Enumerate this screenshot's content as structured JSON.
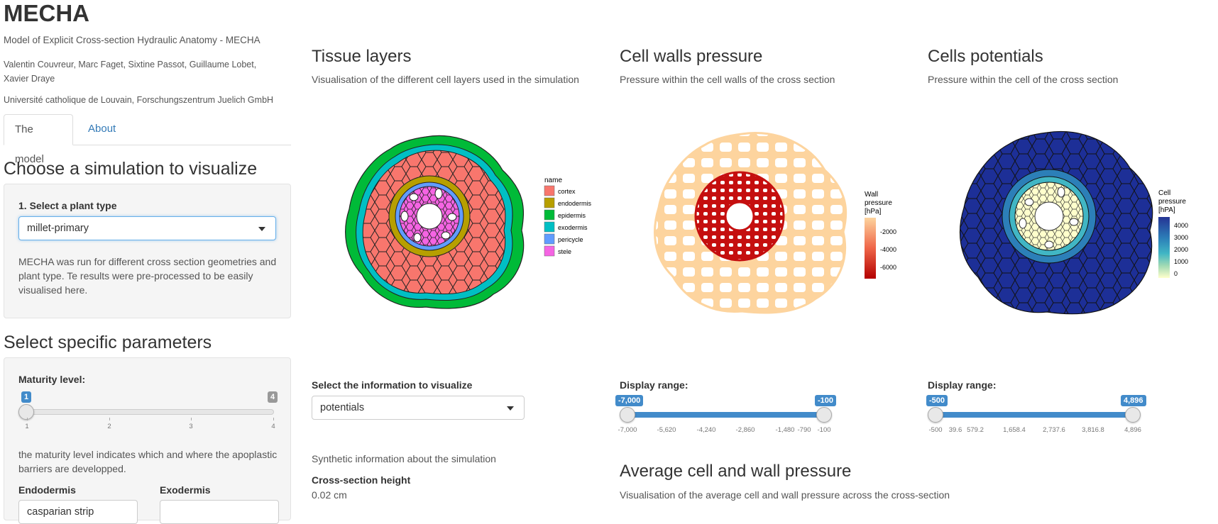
{
  "app": {
    "title": "MECHA",
    "subtitle": "Model of Explicit Cross-section Hydraulic Anatomy - MECHA",
    "authors": "Valentin Couvreur, Marc Faget, Sixtine Passot, Guillaume Lobet, Xavier Draye",
    "affiliation": "Université catholique de Louvain, Forschungszentrum Juelich GmbH"
  },
  "tabs": [
    {
      "label": "The model",
      "active": true
    },
    {
      "label": "About",
      "active": false
    }
  ],
  "sidebar": {
    "choose_heading": "Choose a simulation to visualize",
    "plant_type_label": "1. Select a plant type",
    "plant_type_value": "millet-primary",
    "plant_info": "MECHA was run for different cross section geometries and plant type. Te results were pre-processed to be easily visualised here.",
    "params_heading": "Select specific parameters",
    "maturity_label": "Maturity level:",
    "maturity": {
      "min": 1,
      "max": 4,
      "value": 1,
      "ticks": [
        "1",
        "2",
        "3",
        "4"
      ]
    },
    "maturity_info": "the maturity level indicates which and where the apoplastic barriers are developped.",
    "endodermis_label": "Endodermis",
    "endodermis_value": "casparian strip",
    "exodermis_label": "Exodermis",
    "exodermis_value": ""
  },
  "tissue_plot": {
    "title": "Tissue layers",
    "subtitle": "Visualisation of the different cell layers used in the simulation",
    "legend_title": "name",
    "legend": [
      {
        "label": "cortex",
        "color": "#f8766d"
      },
      {
        "label": "endodermis",
        "color": "#b79f00"
      },
      {
        "label": "epidermis",
        "color": "#00ba38"
      },
      {
        "label": "exodermis",
        "color": "#00bfc4"
      },
      {
        "label": "pericycle",
        "color": "#619cff"
      },
      {
        "label": "stele",
        "color": "#f564e3"
      }
    ]
  },
  "wall_plot": {
    "title": "Cell walls pressure",
    "subtitle": "Pressure within the cell walls of the cross section",
    "legend_title_1": "Wall",
    "legend_title_2": "pressure",
    "legend_title_3": "[hPa]",
    "legend_ticks": [
      "-2000",
      "-4000",
      "-6000"
    ],
    "range_label": "Display range:",
    "range": {
      "min": -7000,
      "max": -100,
      "low_badge": "-7,000",
      "high_badge": "-100"
    },
    "ticks": [
      "-7,000",
      "-5,620",
      "-4,240",
      "-2,860",
      "-1,480",
      "-790",
      "-100"
    ]
  },
  "cell_plot": {
    "title": "Cells potentials",
    "subtitle": "Pressure within the cell of the cross section",
    "legend_title_1": "Cell",
    "legend_title_2": "pressure",
    "legend_title_3": "[hPA]",
    "legend_ticks": [
      "4000",
      "3000",
      "2000",
      "1000",
      "0"
    ],
    "range_label": "Display range:",
    "range": {
      "min": -500,
      "max": 4896,
      "low_badge": "-500",
      "high_badge": "4,896"
    },
    "ticks": [
      "-500",
      "39.6",
      "579.2",
      "1,658.4",
      "2,737.6",
      "3,816.8",
      "4,896"
    ]
  },
  "info_panel": {
    "select_label": "Select the information to visualize",
    "select_value": "potentials",
    "synthetic_title": "Synthetic information about the simulation",
    "height_label": "Cross-section height",
    "height_value": "0.02 cm"
  },
  "average_plot": {
    "title": "Average cell and wall pressure",
    "subtitle": "Visualisation of the average cell and wall pressure across the cross-section"
  },
  "colors": {
    "link": "#337ab7",
    "slider": "#428bca",
    "wall_light": "#fdd49e",
    "wall_dark": "#c50f0f",
    "cell_dark": "#1d2f97",
    "cell_mid": "#41b6c4",
    "cell_light": "#ffffcc"
  }
}
